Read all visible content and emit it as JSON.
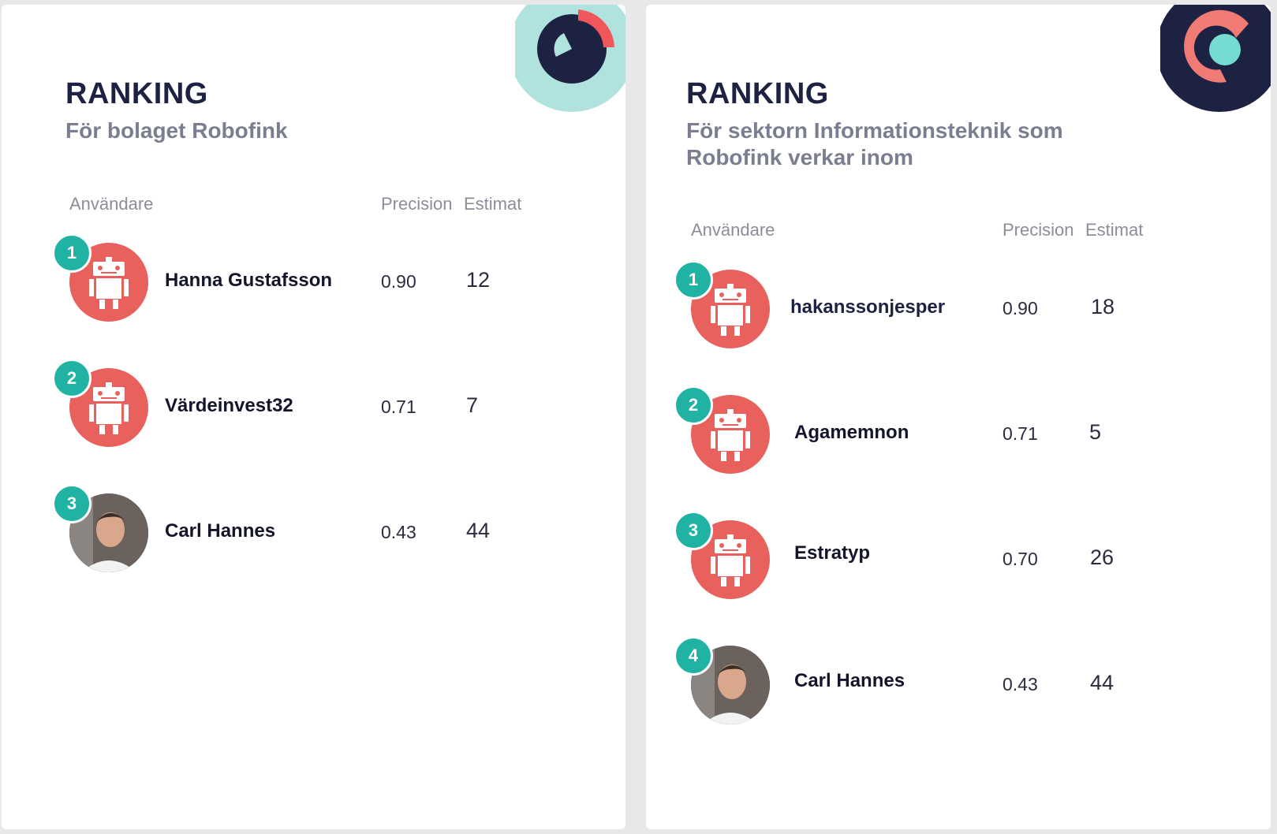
{
  "panels": [
    {
      "title": "RANKING",
      "subtitle": "För bolaget Robofink",
      "columns": {
        "user": "Användare",
        "precision": "Precision",
        "estimate": "Estimat"
      },
      "rows": [
        {
          "rank": "1",
          "name": "Hanna Gustafsson",
          "precision": "0.90",
          "estimate": "12",
          "avatar": "robot-icon"
        },
        {
          "rank": "2",
          "name": "Värdeinvest32",
          "precision": "0.71",
          "estimate": "7",
          "avatar": "robot-icon"
        },
        {
          "rank": "3",
          "name": "Carl Hannes",
          "precision": "0.43",
          "estimate": "44",
          "avatar": "user-photo"
        }
      ]
    },
    {
      "title": "RANKING",
      "subtitle": "För sektorn Informationsteknik som Robofink verkar inom",
      "columns": {
        "user": "Användare",
        "precision": "Precision",
        "estimate": "Estimat"
      },
      "rows": [
        {
          "rank": "1",
          "name": "hakanssonjesper",
          "precision": "0.90",
          "estimate": "18",
          "avatar": "robot-icon"
        },
        {
          "rank": "2",
          "name": "Agamemnon",
          "precision": "0.71",
          "estimate": "5",
          "avatar": "robot-icon"
        },
        {
          "rank": "3",
          "name": "Estratyp",
          "precision": "0.70",
          "estimate": "26",
          "avatar": "robot-icon"
        },
        {
          "rank": "4",
          "name": "Carl Hannes",
          "precision": "0.43",
          "estimate": "44",
          "avatar": "user-photo"
        }
      ]
    }
  ],
  "colors": {
    "navy": "#1d2242",
    "teal": "#20b2a2",
    "light_teal": "#b0e3de",
    "coral": "#e8615d",
    "grey_text": "#7b7d90"
  }
}
